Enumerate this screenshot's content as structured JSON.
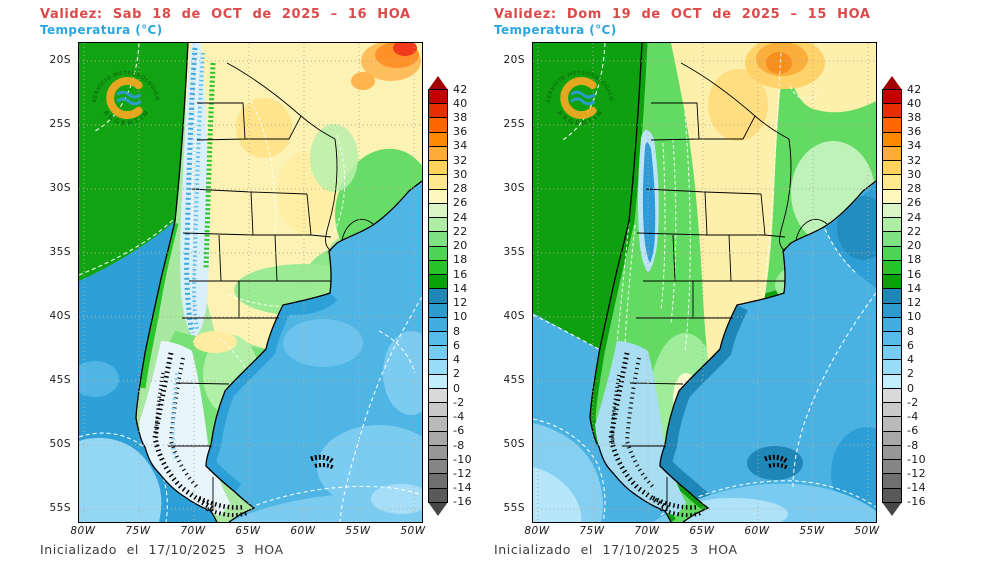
{
  "panels": [
    {
      "validity": "Validez: Sab 18 de OCT de 2025 – 16 HOA",
      "variable": "Temperatura (°C)",
      "footer": "Inicializado el 17/10/2025 3 HOA"
    },
    {
      "validity": "Validez: Dom 19 de OCT de 2025 – 15 HOA",
      "variable": "Temperatura (°C)",
      "footer": "Inicializado el 17/10/2025 3 HOA"
    }
  ],
  "axes": {
    "lat_labels": [
      "20S",
      "25S",
      "30S",
      "35S",
      "40S",
      "45S",
      "50S",
      "55S"
    ],
    "lon_labels": [
      "80W",
      "75W",
      "70W",
      "65W",
      "60W",
      "55W",
      "50W"
    ]
  },
  "colorbar": {
    "unit": "°C",
    "labels": [
      "42",
      "40",
      "38",
      "36",
      "34",
      "32",
      "30",
      "28",
      "26",
      "24",
      "22",
      "20",
      "18",
      "16",
      "14",
      "12",
      "10",
      "8",
      "6",
      "4",
      "2",
      "0",
      "-2",
      "-4",
      "-6",
      "-8",
      "-10",
      "-12",
      "-14",
      "-16"
    ],
    "cell_colors": [
      "#C40000",
      "#E82E00",
      "#FF6600",
      "#FF8A00",
      "#FFAC38",
      "#FFD45E",
      "#FFE88E",
      "#FFF8BE",
      "#D8F6C6",
      "#AEEDA6",
      "#7FE282",
      "#50D455",
      "#2BC32B",
      "#0AA00A",
      "#1F86B8",
      "#2E9BCE",
      "#41ACDE",
      "#58BCEA",
      "#76CBF2",
      "#99DCF8",
      "#C3EFFC",
      "#D9D9D9",
      "#C9C9C9",
      "#B9B9B9",
      "#A8A8A8",
      "#979797",
      "#858585",
      "#6F6F6F",
      "#595959"
    ],
    "arrow_top_color": "#A00000",
    "arrow_bottom_color": "#474747"
  },
  "logo": {
    "top": "SERVICIO METEOROLOGICO NACIONAL",
    "bottom": "ARGENTINA"
  },
  "colors": {
    "title_red": "#DB4A4A",
    "variable_cyan": "#2AA7DF",
    "footer_gray": "#3C3C3C"
  }
}
